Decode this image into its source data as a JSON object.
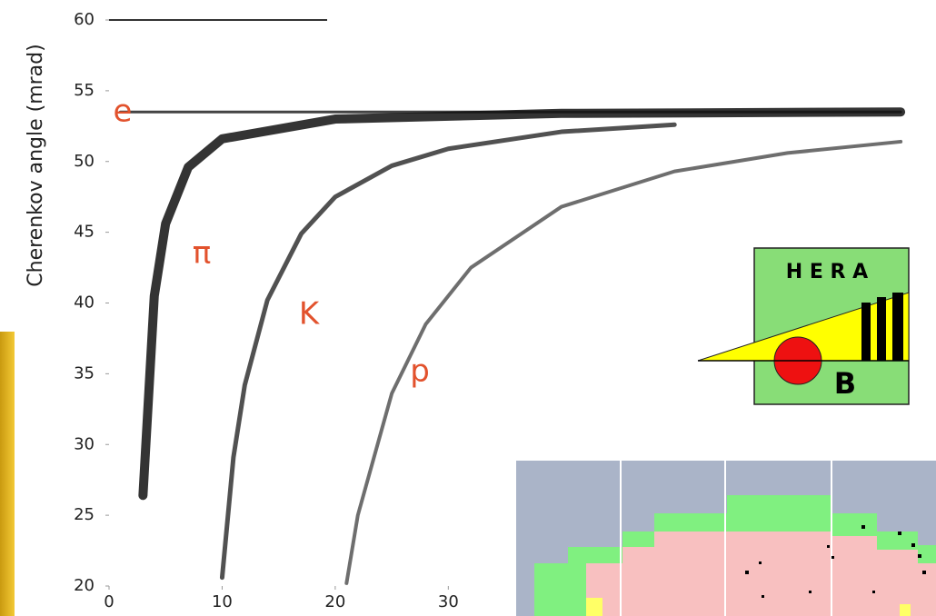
{
  "chart_data": {
    "type": "line",
    "y_label": "Cherenkov angle (mrad)",
    "xlim": [
      0,
      72
    ],
    "ylim": [
      20,
      60
    ],
    "xticks": [
      0,
      10,
      20,
      30
    ],
    "yticks": [
      20,
      25,
      30,
      35,
      40,
      45,
      50,
      55,
      60
    ],
    "annotations": [
      "e",
      "π",
      "K",
      "p"
    ],
    "series": [
      {
        "name": "e",
        "color": "#222222",
        "x": [
          1,
          10,
          20,
          30,
          40,
          50,
          60,
          70
        ],
        "values": [
          53.5,
          53.5,
          53.5,
          53.5,
          53.5,
          53.5,
          53.5,
          53.5
        ]
      },
      {
        "name": "π",
        "color": "#111111",
        "x": [
          3,
          4,
          5,
          7,
          10,
          20,
          40,
          70
        ],
        "values": [
          26.4,
          40.5,
          45.6,
          49.6,
          51.6,
          53.0,
          53.4,
          53.5
        ]
      },
      {
        "name": "K",
        "color": "#333333",
        "x": [
          10,
          11,
          12,
          14,
          17,
          20,
          25,
          30,
          40,
          50
        ],
        "values": [
          20.6,
          29.1,
          34.2,
          40.2,
          44.9,
          47.5,
          49.7,
          50.9,
          52.1,
          52.6
        ]
      },
      {
        "name": "p",
        "color": "#555555",
        "x": [
          21,
          22,
          25,
          28,
          32,
          40,
          50,
          60,
          70
        ],
        "values": [
          20.2,
          25.0,
          33.6,
          38.5,
          42.5,
          46.8,
          49.3,
          50.6,
          51.4
        ]
      }
    ]
  },
  "logo": {
    "top": "H E R A",
    "bottom": "B"
  }
}
